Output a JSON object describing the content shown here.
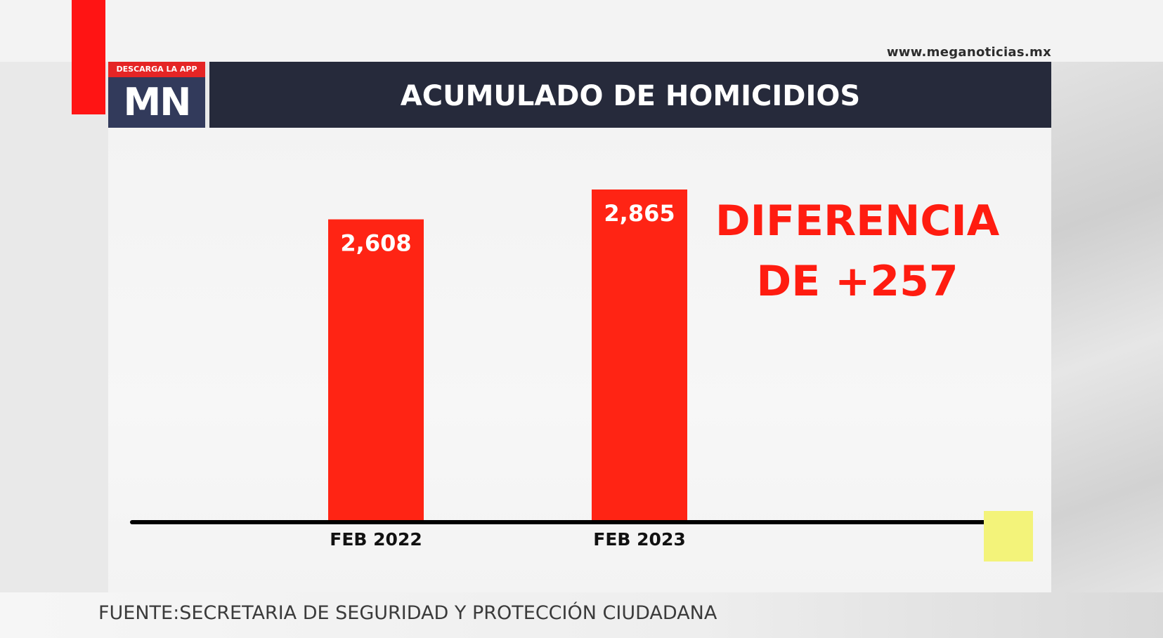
{
  "header": {
    "url": "www.meganoticias.mx",
    "logo_top": "DESCARGA LA APP",
    "logo_mark": "MN",
    "title": "ACUMULADO DE HOMICIDIOS"
  },
  "annotation": {
    "line1": "DIFERENCIA",
    "line2": "DE +257"
  },
  "footer": {
    "source": "FUENTE:SECRETARIA DE SEGURIDAD Y PROTECCIÓN CIUDADANA"
  },
  "colors": {
    "bar": "#ff2414",
    "accent_red": "#ff1414",
    "title_bar": "#262a3b",
    "logo_bg": "#323a5b",
    "annotation": "#ff1c10",
    "highlight": "#f3f37a"
  },
  "chart_data": {
    "type": "bar",
    "title": "ACUMULADO DE HOMICIDIOS",
    "categories": [
      "FEB 2022",
      "FEB 2023"
    ],
    "values": [
      2608,
      2865
    ],
    "value_labels": [
      "2,608",
      "2,865"
    ],
    "xlabel": "",
    "ylabel": "",
    "ylim": [
      0,
      2865
    ],
    "grid": false,
    "legend": "none"
  }
}
